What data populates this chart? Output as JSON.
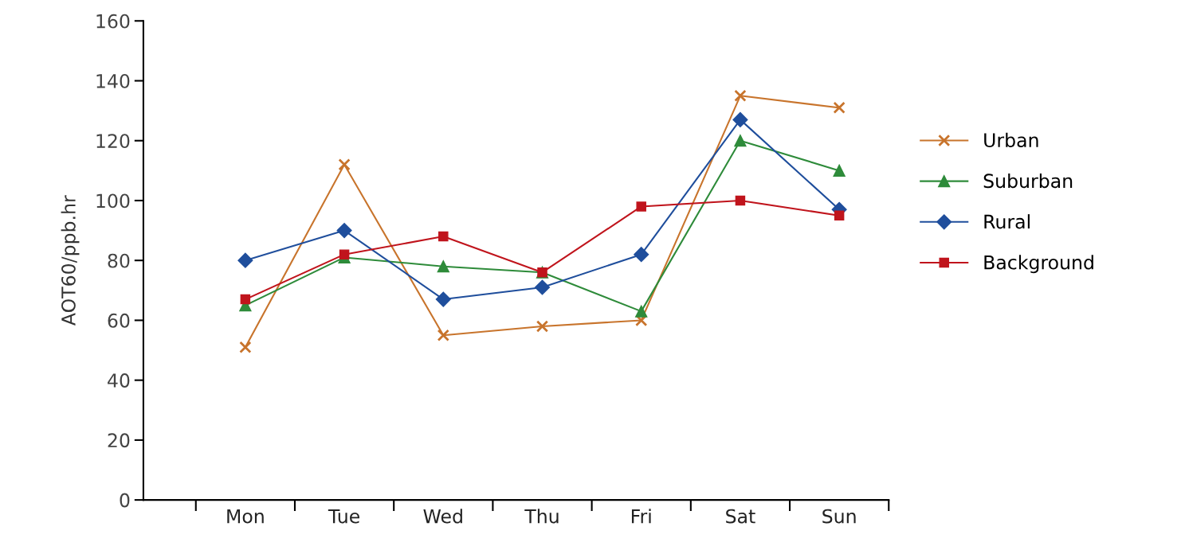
{
  "chart_data": {
    "type": "line",
    "ylabel": "AOT60/ppb.hr",
    "categories": [
      "Mon",
      "Tue",
      "Wed",
      "Thu",
      "Fri",
      "Sat",
      "Sun"
    ],
    "series": [
      {
        "name": "Urban",
        "color": "#c8742c",
        "marker": "cross",
        "values": [
          51,
          112,
          55,
          58,
          60,
          135,
          131
        ]
      },
      {
        "name": "Suburban",
        "color": "#2e8b3a",
        "marker": "triangle",
        "values": [
          65,
          81,
          78,
          76,
          63,
          120,
          110
        ]
      },
      {
        "name": "Rural",
        "color": "#1f4e9c",
        "marker": "diamond",
        "values": [
          80,
          90,
          67,
          71,
          82,
          127,
          97
        ]
      },
      {
        "name": "Background",
        "color": "#c0141c",
        "marker": "square",
        "values": [
          67,
          82,
          88,
          76,
          98,
          100,
          95
        ]
      }
    ],
    "ylim": [
      0,
      160
    ],
    "yticks": [
      0,
      20,
      40,
      60,
      80,
      100,
      120,
      140,
      160
    ],
    "grid": false,
    "legend": "right",
    "line_style": "solid"
  }
}
